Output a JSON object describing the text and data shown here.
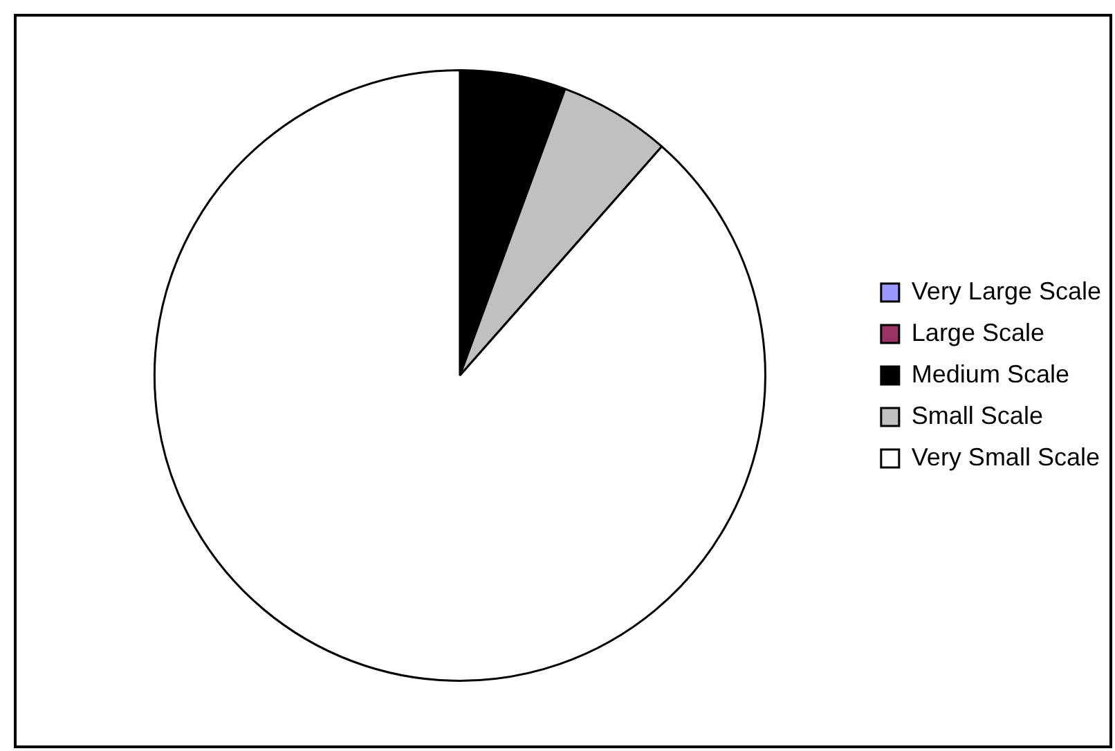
{
  "chart_data": {
    "type": "pie",
    "categories": [
      "Very Large Scale",
      "Large Scale",
      "Medium Scale",
      "Small Scale",
      "Very Small Scale"
    ],
    "values": [
      0,
      0,
      5.6,
      5.9,
      88.5
    ],
    "colors": [
      "#9999ff",
      "#993366",
      "#000000",
      "#c0c0c0",
      "#ffffff"
    ],
    "legend": "right"
  }
}
